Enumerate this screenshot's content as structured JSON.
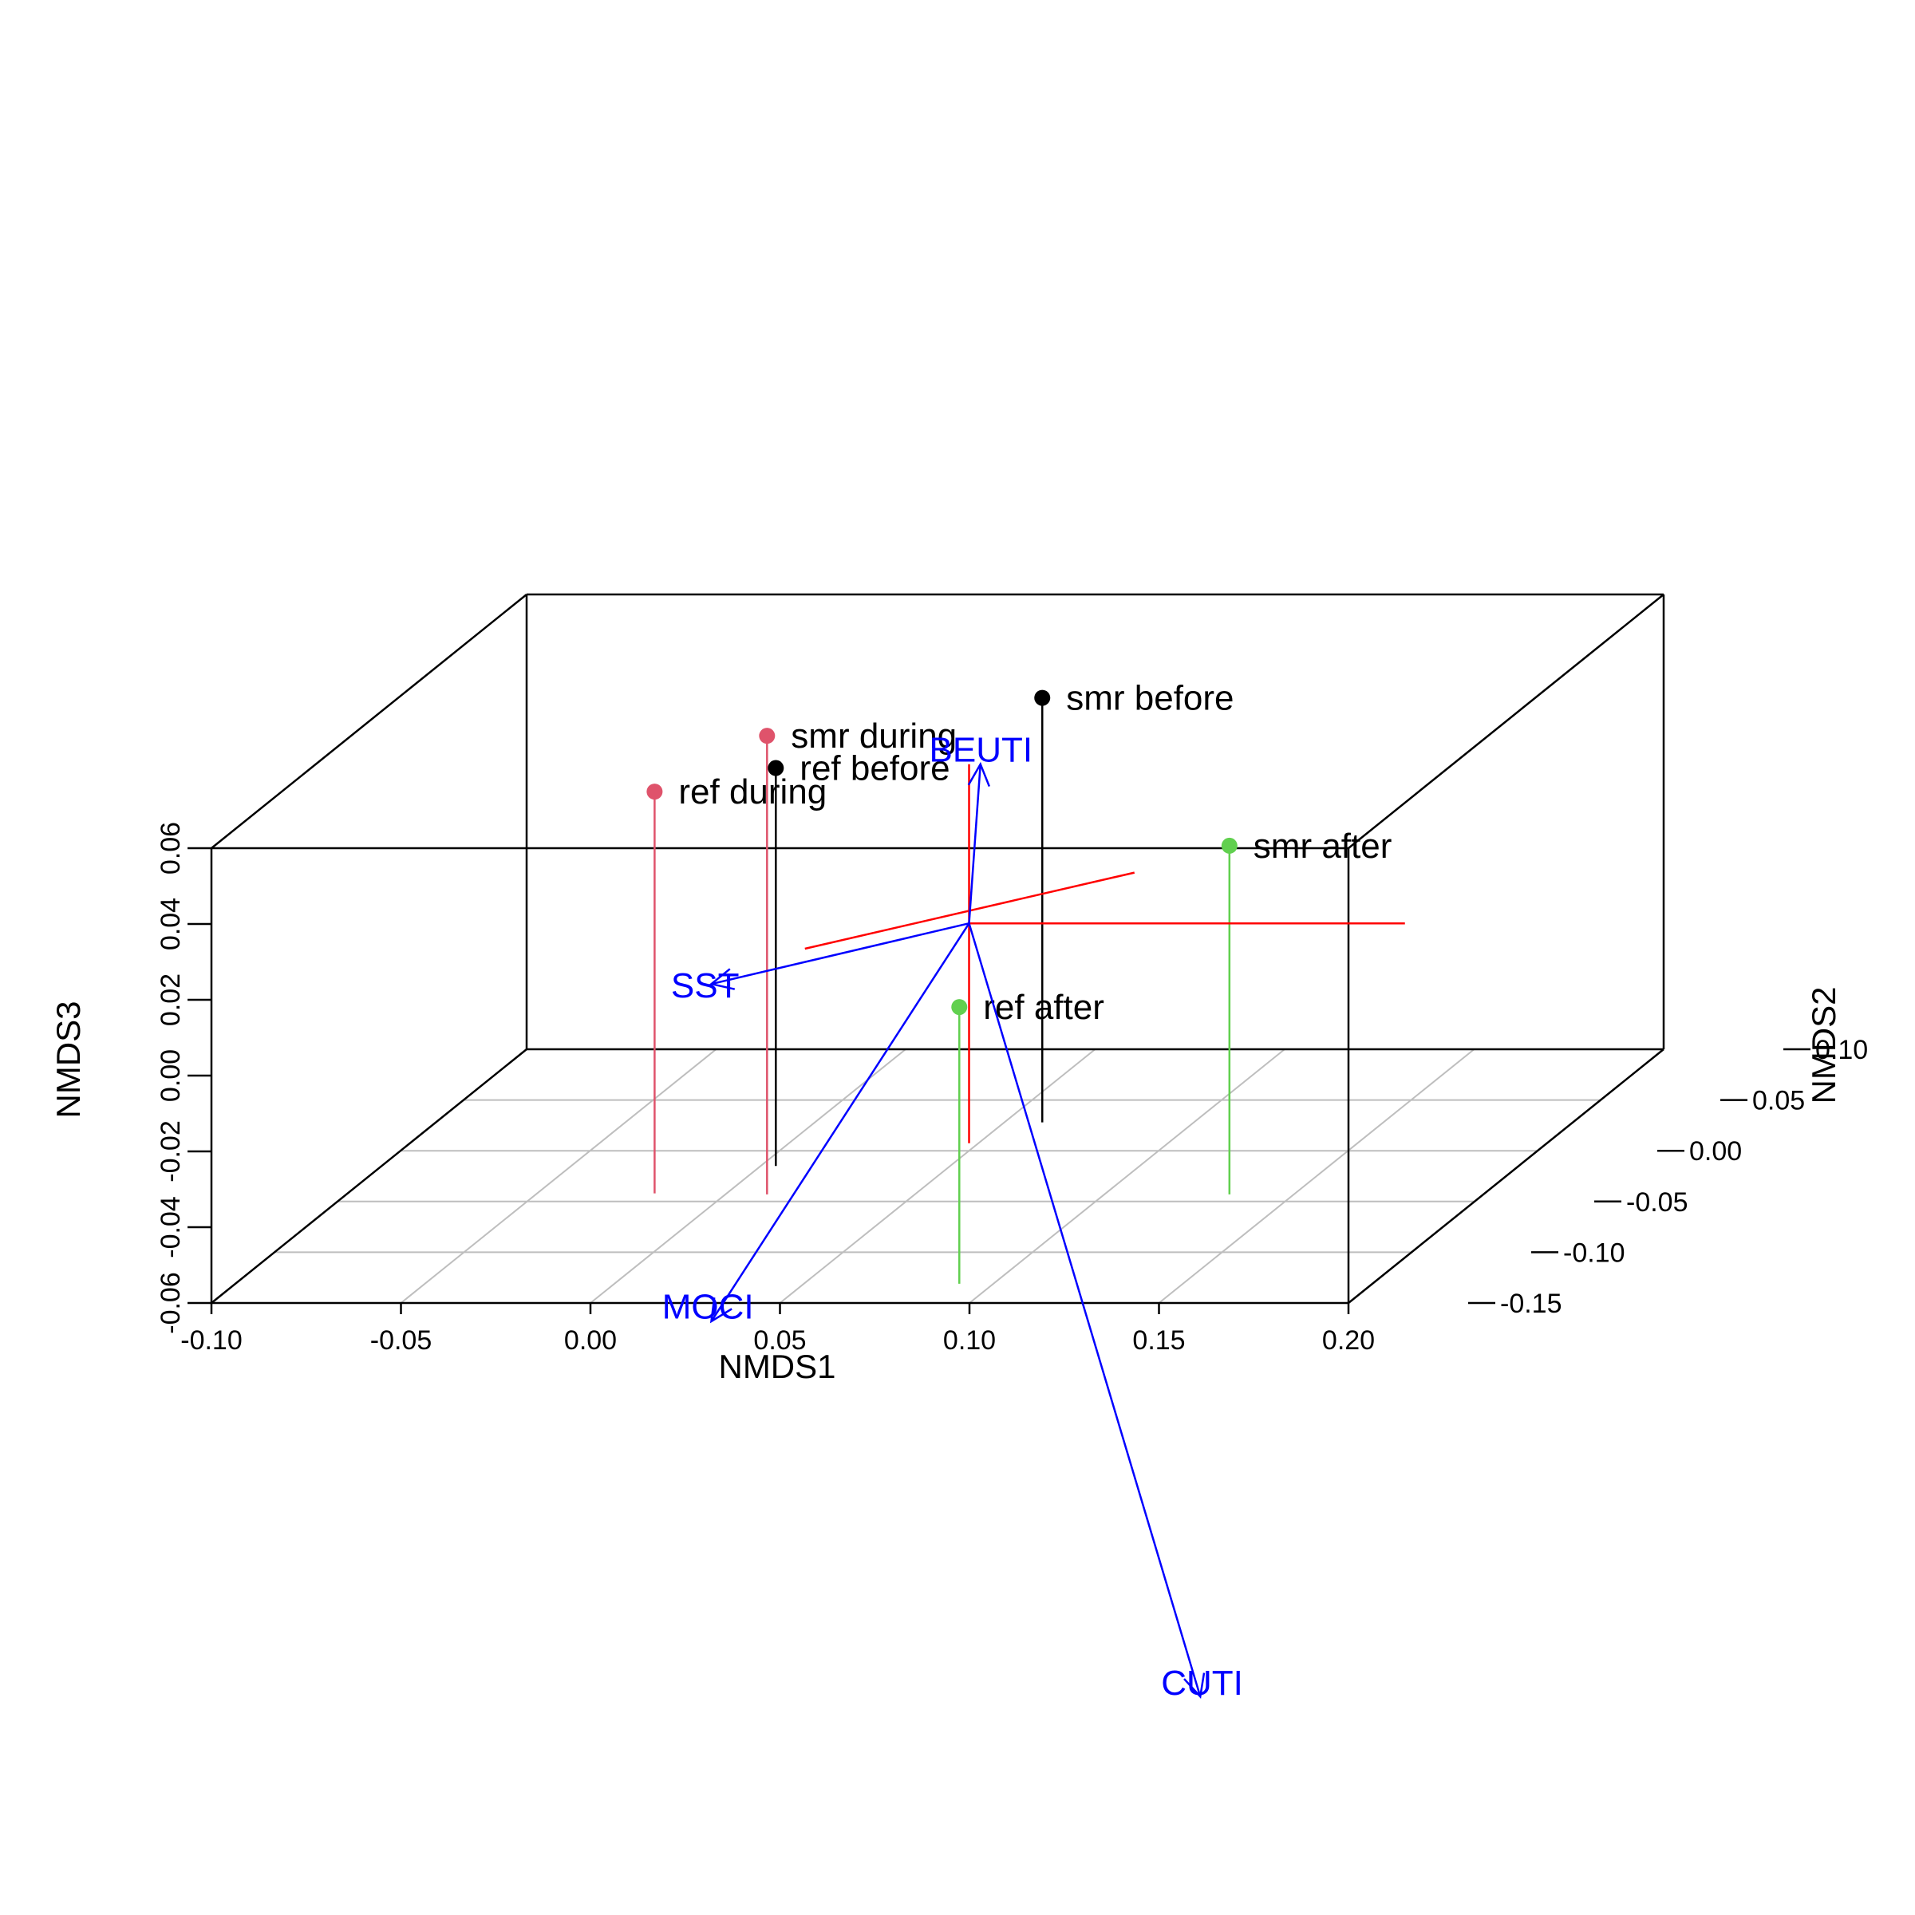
{
  "chart_data": {
    "type": "scatter3d",
    "xlabel": "NMDS1",
    "ylabel": "NMDS2",
    "zlabel": "NMDS3",
    "xlim": [
      -0.1,
      0.2
    ],
    "ylim": [
      -0.15,
      0.1
    ],
    "zlim": [
      -0.06,
      0.06
    ],
    "x_ticks": [
      "-0.10",
      "-0.05",
      "0.00",
      "0.05",
      "0.10",
      "0.15",
      "0.20"
    ],
    "y_ticks": [
      "-0.15",
      "-0.10",
      "-0.05",
      "0.00",
      "0.05",
      "0.10"
    ],
    "z_ticks": [
      "-0.06",
      "-0.04",
      "-0.02",
      "0.00",
      "0.02",
      "0.04",
      "0.06"
    ],
    "grid": true,
    "points": [
      {
        "label": "smr before",
        "x": 0.06,
        "y": 0.028,
        "z": 0.052,
        "color": "#000000"
      },
      {
        "label": "smr during",
        "x": 0.011,
        "y": -0.043,
        "z": 0.061,
        "color": "#DF536B"
      },
      {
        "label": "ref before",
        "x": 0.004,
        "y": -0.015,
        "z": 0.045,
        "color": "#000000"
      },
      {
        "label": "ref during",
        "x": -0.019,
        "y": -0.042,
        "z": 0.046,
        "color": "#DF536B"
      },
      {
        "label": "smr after",
        "x": 0.133,
        "y": -0.043,
        "z": 0.032,
        "color": "#61D04F"
      },
      {
        "label": "ref after",
        "x": 0.091,
        "y": -0.131,
        "z": 0.013,
        "color": "#61D04F"
      }
    ],
    "origin": {
      "x": 0.05,
      "y": 0,
      "z": 0
    },
    "origin_axes": [
      {
        "from": [
          0.05,
          0,
          0
        ],
        "to": [
          0.165,
          0,
          0
        ],
        "color": "#ff0000"
      },
      {
        "from": [
          0.05,
          0,
          -0.058
        ],
        "to": [
          0.05,
          0,
          0.042
        ],
        "color": "#ff0000"
      },
      {
        "from": [
          0.015,
          -0.025,
          0
        ],
        "to": [
          0.077,
          0.05,
          0
        ],
        "color": "#ff0000"
      }
    ],
    "vectors": [
      {
        "label": "BEUTI",
        "tip": [
          0.053,
          0.0,
          0.042
        ],
        "color": "#0000ff"
      },
      {
        "label": "SST",
        "tip": [
          -0.018,
          0.0,
          -0.016
        ],
        "color": "#0000ff"
      },
      {
        "label": "MOCI",
        "tip": [
          -0.018,
          0.0,
          -0.105
        ],
        "color": "#0000ff"
      },
      {
        "label": "CUTI",
        "tip": [
          0.111,
          0.0,
          -0.204
        ],
        "color": "#0000ff"
      }
    ]
  }
}
